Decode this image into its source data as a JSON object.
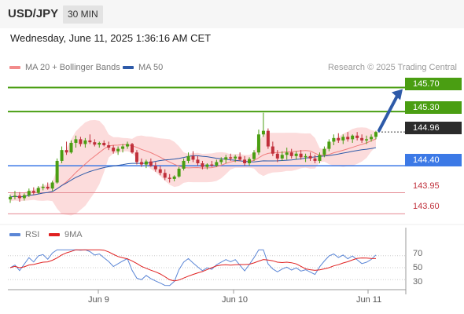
{
  "header": {
    "symbol": "USD/JPY",
    "timeframe": "30 MIN",
    "datetime": "Wednesday, June 11, 2025 1:36:16 AM CET"
  },
  "legend": {
    "items": [
      {
        "label": "MA 20 + Bollinger Bands",
        "color": "#f28b8b"
      },
      {
        "label": "MA 50",
        "color": "#2e5aa8"
      }
    ],
    "credit": "Research © 2025 Trading Central"
  },
  "levels": {
    "resistance_2": "145.70",
    "resistance_1": "145.30",
    "last_price": "144.96",
    "pivot": "144.40",
    "support_1": "143.95",
    "support_2": "143.60"
  },
  "rsi_legend": {
    "items": [
      {
        "label": "RSI",
        "color": "#5b86d6"
      },
      {
        "label": "9MA",
        "color": "#e02020"
      }
    ]
  },
  "rsi_axis": [
    "70",
    "50",
    "30"
  ],
  "dates": [
    "Jun 9",
    "Jun 10",
    "Jun 11"
  ],
  "colors": {
    "resistance": "#4a9e12",
    "pivot": "#3c79e6",
    "support": "#e58a92",
    "bollinger": "#fcdcdc",
    "ma20": "#f07c7c",
    "ma50": "#2e5aa8",
    "candle_up": "#4a9e12",
    "candle_down": "#c0303b",
    "arrow": "#2e5aa8"
  },
  "chart_data": {
    "type": "candlestick",
    "y_range": [
      143.5,
      145.85
    ],
    "candles": [
      [
        143.84,
        143.92,
        143.78,
        143.88
      ],
      [
        143.88,
        143.98,
        143.84,
        143.9
      ],
      [
        143.9,
        143.96,
        143.8,
        143.86
      ],
      [
        143.86,
        143.94,
        143.82,
        143.91
      ],
      [
        143.91,
        144.02,
        143.88,
        143.98
      ],
      [
        143.98,
        144.04,
        143.92,
        143.95
      ],
      [
        143.95,
        144.06,
        143.93,
        144.03
      ],
      [
        144.03,
        144.1,
        143.99,
        144.05
      ],
      [
        144.05,
        144.12,
        144.0,
        144.02
      ],
      [
        144.02,
        144.15,
        143.98,
        144.12
      ],
      [
        144.12,
        144.52,
        144.1,
        144.48
      ],
      [
        144.48,
        144.72,
        144.44,
        144.66
      ],
      [
        144.66,
        144.8,
        144.58,
        144.62
      ],
      [
        144.62,
        144.82,
        144.6,
        144.78
      ],
      [
        144.78,
        144.9,
        144.7,
        144.84
      ],
      [
        144.84,
        144.88,
        144.72,
        144.76
      ],
      [
        144.76,
        144.86,
        144.7,
        144.82
      ],
      [
        144.82,
        144.92,
        144.76,
        144.79
      ],
      [
        144.79,
        144.84,
        144.72,
        144.75
      ],
      [
        144.75,
        144.8,
        144.7,
        144.78
      ],
      [
        144.78,
        144.82,
        144.72,
        144.74
      ],
      [
        144.74,
        144.8,
        144.66,
        144.7
      ],
      [
        144.7,
        144.74,
        144.6,
        144.64
      ],
      [
        144.64,
        144.72,
        144.58,
        144.68
      ],
      [
        144.68,
        144.76,
        144.62,
        144.72
      ],
      [
        144.72,
        144.8,
        144.68,
        144.76
      ],
      [
        144.76,
        144.78,
        144.6,
        144.62
      ],
      [
        144.62,
        144.66,
        144.42,
        144.46
      ],
      [
        144.46,
        144.52,
        144.38,
        144.42
      ],
      [
        144.42,
        144.5,
        144.36,
        144.47
      ],
      [
        144.47,
        144.52,
        144.38,
        144.4
      ],
      [
        144.4,
        144.46,
        144.3,
        144.34
      ],
      [
        144.34,
        144.4,
        144.24,
        144.28
      ],
      [
        144.28,
        144.34,
        144.16,
        144.2
      ],
      [
        144.2,
        144.26,
        144.12,
        144.18
      ],
      [
        144.18,
        144.24,
        144.14,
        144.22
      ],
      [
        144.22,
        144.38,
        144.2,
        144.35
      ],
      [
        144.35,
        144.52,
        144.32,
        144.48
      ],
      [
        144.48,
        144.62,
        144.44,
        144.56
      ],
      [
        144.56,
        144.64,
        144.46,
        144.5
      ],
      [
        144.5,
        144.56,
        144.4,
        144.44
      ],
      [
        144.44,
        144.48,
        144.34,
        144.38
      ],
      [
        144.38,
        144.44,
        144.34,
        144.42
      ],
      [
        144.42,
        144.48,
        144.38,
        144.4
      ],
      [
        144.4,
        144.5,
        144.38,
        144.46
      ],
      [
        144.46,
        144.54,
        144.42,
        144.5
      ],
      [
        144.5,
        144.58,
        144.44,
        144.54
      ],
      [
        144.54,
        144.6,
        144.48,
        144.52
      ],
      [
        144.52,
        144.58,
        144.46,
        144.55
      ],
      [
        144.55,
        144.62,
        144.48,
        144.5
      ],
      [
        144.5,
        144.56,
        144.4,
        144.44
      ],
      [
        144.44,
        144.54,
        144.4,
        144.51
      ],
      [
        144.51,
        144.66,
        144.48,
        144.62
      ],
      [
        144.62,
        145.0,
        144.58,
        144.92
      ],
      [
        144.92,
        145.28,
        144.88,
        144.98
      ],
      [
        144.98,
        145.02,
        144.68,
        144.72
      ],
      [
        144.72,
        144.8,
        144.56,
        144.6
      ],
      [
        144.6,
        144.66,
        144.46,
        144.52
      ],
      [
        144.52,
        144.64,
        144.48,
        144.58
      ],
      [
        144.58,
        144.7,
        144.5,
        144.62
      ],
      [
        144.62,
        144.68,
        144.52,
        144.56
      ],
      [
        144.56,
        144.64,
        144.5,
        144.6
      ],
      [
        144.6,
        144.66,
        144.5,
        144.54
      ],
      [
        144.54,
        144.6,
        144.46,
        144.56
      ],
      [
        144.56,
        144.62,
        144.48,
        144.52
      ],
      [
        144.52,
        144.58,
        144.44,
        144.48
      ],
      [
        144.48,
        144.62,
        144.44,
        144.58
      ],
      [
        144.58,
        144.72,
        144.54,
        144.68
      ],
      [
        144.68,
        144.84,
        144.64,
        144.8
      ],
      [
        144.8,
        144.92,
        144.74,
        144.86
      ],
      [
        144.86,
        144.94,
        144.78,
        144.82
      ],
      [
        144.82,
        144.92,
        144.76,
        144.88
      ],
      [
        144.88,
        144.96,
        144.8,
        144.84
      ],
      [
        144.84,
        144.92,
        144.78,
        144.9
      ],
      [
        144.9,
        144.96,
        144.82,
        144.86
      ],
      [
        144.86,
        144.92,
        144.78,
        144.82
      ],
      [
        144.82,
        144.9,
        144.76,
        144.84
      ],
      [
        144.84,
        144.92,
        144.8,
        144.88
      ],
      [
        144.88,
        144.98,
        144.84,
        144.96
      ]
    ]
  }
}
